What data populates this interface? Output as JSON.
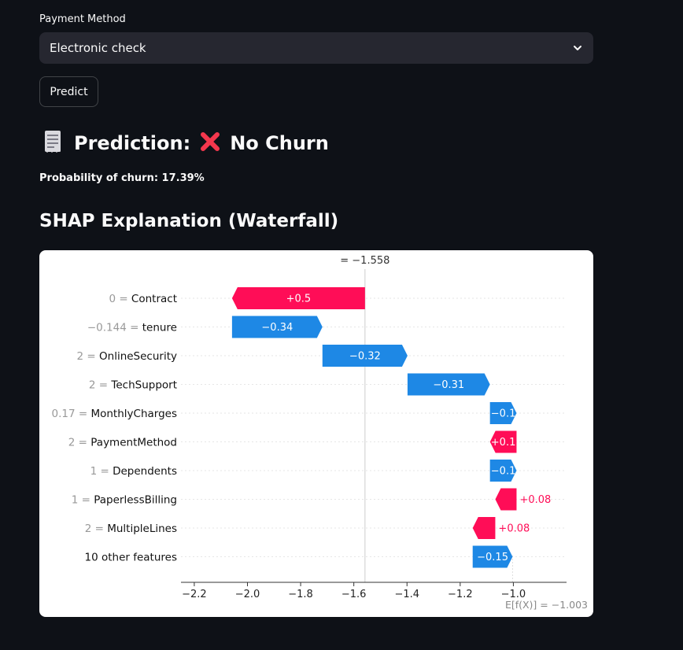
{
  "form": {
    "field_label": "Payment Method",
    "select_value": "Electronic check",
    "predict_button": "Predict"
  },
  "result": {
    "prediction_label": "Prediction:",
    "prediction_value": "No Churn",
    "prediction_icon": "cross-mark-icon",
    "probability_text": "Probability of churn: 17.39%"
  },
  "section": {
    "shap_title": "SHAP Explanation (Waterfall)"
  },
  "colors": {
    "background": "#0e1117",
    "select_bg": "#262730",
    "positive": "#ff0d57",
    "negative": "#1e88e5"
  },
  "chart_data": {
    "type": "waterfall",
    "fx_label": "= −1.558",
    "fx_value": -1.558,
    "base_label": "E[f(X)] = −1.003",
    "base_value": -1.003,
    "xlim": [
      -2.25,
      -0.8
    ],
    "x_ticks": [
      {
        "v": -2.2,
        "label": "−2.2"
      },
      {
        "v": -2.0,
        "label": "−2.0"
      },
      {
        "v": -1.8,
        "label": "−1.8"
      },
      {
        "v": -1.6,
        "label": "−1.6"
      },
      {
        "v": -1.4,
        "label": "−1.4"
      },
      {
        "v": -1.2,
        "label": "−1.2"
      },
      {
        "v": -1.0,
        "label": "−1.0"
      }
    ],
    "features": [
      {
        "value": "0",
        "name": "Contract",
        "start": -1.558,
        "end": -2.058,
        "label": "+0.5"
      },
      {
        "value": "−0.144",
        "name": "tenure",
        "start": -2.058,
        "end": -1.718,
        "label": "−0.34"
      },
      {
        "value": "2",
        "name": "OnlineSecurity",
        "start": -1.718,
        "end": -1.398,
        "label": "−0.32"
      },
      {
        "value": "2",
        "name": "TechSupport",
        "start": -1.398,
        "end": -1.088,
        "label": "−0.31"
      },
      {
        "value": "0.17",
        "name": "MonthlyCharges",
        "start": -1.088,
        "end": -0.988,
        "label": "−0.1"
      },
      {
        "value": "2",
        "name": "PaymentMethod",
        "start": -0.988,
        "end": -1.088,
        "label": "+0.1"
      },
      {
        "value": "1",
        "name": "Dependents",
        "start": -1.088,
        "end": -0.988,
        "label": "−0.1"
      },
      {
        "value": "1",
        "name": "PaperlessBilling",
        "start": -0.988,
        "end": -1.068,
        "label": "+0.08"
      },
      {
        "value": "2",
        "name": "MultipleLines",
        "start": -1.068,
        "end": -1.153,
        "label": "+0.08"
      },
      {
        "value": "",
        "name": "10 other features",
        "start": -1.153,
        "end": -1.003,
        "label": "−0.15"
      }
    ]
  }
}
